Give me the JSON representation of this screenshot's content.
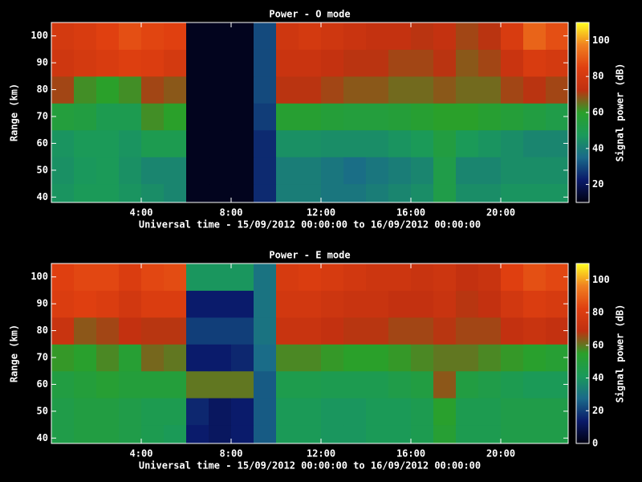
{
  "chart_data": [
    {
      "type": "heatmap",
      "title": "Power - O mode",
      "xlabel": "Universal time - 15/09/2012 00:00:00 to 16/09/2012 00:00:00",
      "ylabel": "Range (km)",
      "colorbar_label": "Signal power (dB)",
      "x": [
        0,
        1,
        2,
        3,
        4,
        5,
        6,
        7,
        8,
        9,
        10,
        11,
        12,
        13,
        14,
        15,
        16,
        17,
        18,
        19,
        20,
        21,
        22
      ],
      "y": [
        40,
        50,
        60,
        70,
        80,
        90,
        100
      ],
      "values": [
        [
          46,
          48,
          48,
          46,
          44,
          42,
          12,
          12,
          12,
          25,
          40,
          40,
          38,
          38,
          40,
          42,
          44,
          52,
          44,
          44,
          46,
          46,
          46
        ],
        [
          45,
          47,
          48,
          45,
          42,
          42,
          12,
          12,
          12,
          25,
          40,
          40,
          38,
          36,
          38,
          40,
          42,
          52,
          42,
          42,
          44,
          44,
          44
        ],
        [
          46,
          48,
          48,
          46,
          50,
          50,
          12,
          12,
          12,
          25,
          45,
          45,
          44,
          44,
          44,
          46,
          48,
          54,
          48,
          46,
          44,
          42,
          42
        ],
        [
          55,
          54,
          50,
          50,
          62,
          60,
          12,
          12,
          12,
          28,
          58,
          58,
          56,
          55,
          55,
          56,
          58,
          60,
          60,
          58,
          56,
          54,
          52
        ],
        [
          70,
          62,
          60,
          62,
          70,
          68,
          12,
          12,
          12,
          30,
          72,
          72,
          70,
          68,
          68,
          66,
          66,
          68,
          66,
          66,
          70,
          72,
          70
        ],
        [
          78,
          80,
          82,
          84,
          83,
          80,
          12,
          12,
          12,
          30,
          76,
          76,
          74,
          72,
          72,
          70,
          70,
          72,
          68,
          70,
          76,
          82,
          80
        ],
        [
          80,
          82,
          85,
          88,
          86,
          85,
          12,
          12,
          12,
          30,
          78,
          80,
          78,
          76,
          74,
          74,
          72,
          74,
          70,
          72,
          82,
          92,
          88
        ]
      ],
      "xlim": [
        0,
        23
      ],
      "ylim": [
        38,
        105
      ],
      "xticks": [
        {
          "value": 4,
          "label": "4:00"
        },
        {
          "value": 8,
          "label": "8:00"
        },
        {
          "value": 12,
          "label": "12:00"
        },
        {
          "value": 16,
          "label": "16:00"
        },
        {
          "value": 20,
          "label": "20:00"
        }
      ],
      "yticks": [
        40,
        50,
        60,
        70,
        80,
        90,
        100
      ],
      "zlim": [
        10,
        110
      ],
      "zticks": [
        20,
        40,
        60,
        80,
        100
      ],
      "colormap": [
        "#000010",
        "#0a1a6a",
        "#1a6a8a",
        "#1a9a5a",
        "#2aa02a",
        "#c03010",
        "#e04010",
        "#f08020",
        "#ffff20"
      ]
    },
    {
      "type": "heatmap",
      "title": "Power - E mode",
      "xlabel": "Universal time - 15/09/2012 00:00:00 to 16/09/2012 00:00:00",
      "ylabel": "Range (km)",
      "colorbar_label": "Signal power (dB)",
      "x": [
        0,
        1,
        2,
        3,
        4,
        5,
        6,
        7,
        8,
        9,
        10,
        11,
        12,
        13,
        14,
        15,
        16,
        17,
        18,
        19,
        20,
        21,
        22
      ],
      "y": [
        40,
        50,
        60,
        70,
        80,
        90,
        100
      ],
      "values": [
        [
          46,
          48,
          48,
          46,
          44,
          42,
          14,
          12,
          14,
          25,
          42,
          42,
          40,
          40,
          42,
          42,
          44,
          52,
          44,
          44,
          46,
          46,
          46
        ],
        [
          46,
          48,
          48,
          46,
          44,
          44,
          16,
          12,
          14,
          25,
          42,
          42,
          40,
          40,
          42,
          42,
          44,
          54,
          44,
          44,
          46,
          46,
          46
        ],
        [
          48,
          50,
          52,
          50,
          50,
          50,
          60,
          60,
          60,
          25,
          45,
          45,
          44,
          44,
          44,
          46,
          48,
          64,
          48,
          46,
          44,
          42,
          42
        ],
        [
          56,
          54,
          58,
          52,
          62,
          60,
          14,
          14,
          16,
          28,
          58,
          58,
          56,
          55,
          55,
          56,
          58,
          60,
          60,
          58,
          56,
          54,
          52
        ],
        [
          72,
          64,
          66,
          70,
          68,
          68,
          20,
          20,
          20,
          30,
          72,
          72,
          70,
          68,
          68,
          66,
          66,
          68,
          66,
          66,
          70,
          72,
          70
        ],
        [
          80,
          82,
          80,
          76,
          80,
          80,
          14,
          14,
          14,
          30,
          76,
          76,
          74,
          72,
          72,
          70,
          70,
          72,
          68,
          70,
          76,
          80,
          78
        ],
        [
          82,
          84,
          84,
          80,
          84,
          85,
          40,
          40,
          40,
          30,
          78,
          80,
          78,
          76,
          74,
          74,
          72,
          74,
          70,
          72,
          82,
          86,
          84
        ]
      ],
      "xlim": [
        0,
        23
      ],
      "ylim": [
        38,
        105
      ],
      "xticks": [
        {
          "value": 4,
          "label": "4:00"
        },
        {
          "value": 8,
          "label": "8:00"
        },
        {
          "value": 12,
          "label": "12:00"
        },
        {
          "value": 16,
          "label": "16:00"
        },
        {
          "value": 20,
          "label": "20:00"
        }
      ],
      "yticks": [
        40,
        50,
        60,
        70,
        80,
        90,
        100
      ],
      "zlim": [
        0,
        110
      ],
      "zticks": [
        0,
        20,
        40,
        60,
        80,
        100
      ],
      "colormap": [
        "#000010",
        "#0a1a6a",
        "#1a6a8a",
        "#1a9a5a",
        "#2aa02a",
        "#c03010",
        "#e04010",
        "#f08020",
        "#ffff20"
      ]
    }
  ]
}
